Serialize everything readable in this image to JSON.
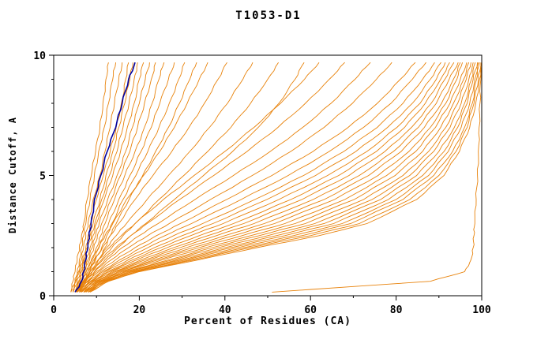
{
  "chart_data": {
    "type": "line",
    "title": "T1053-D1",
    "xlabel": "Percent of Residues (CA)",
    "ylabel": "Distance Cutoff, A",
    "xlim": [
      0,
      100
    ],
    "ylim": [
      0,
      10
    ],
    "x_ticks": [
      0,
      20,
      40,
      60,
      80,
      100
    ],
    "y_ticks": [
      0,
      5,
      10
    ],
    "grid": false,
    "legend": "none",
    "colors": {
      "model": "#e8820a",
      "highlight": "#0000a0",
      "frame": "#000000"
    },
    "cutoffs": [
      0.15,
      0.6,
      1,
      1.5,
      2,
      2.5,
      3,
      4,
      5,
      6,
      7,
      8,
      9,
      9.7
    ],
    "series": [
      {
        "c": "o",
        "p": [
          4,
          4.5,
          5,
          5.5,
          6,
          6.5,
          7,
          7.8,
          8.8,
          9.8,
          10.8,
          11.5,
          12.2,
          12.8
        ]
      },
      {
        "c": "o",
        "p": [
          4,
          5,
          5.5,
          6,
          6.5,
          7,
          7.5,
          8.5,
          9.5,
          10.5,
          11.8,
          12.8,
          13.8,
          14.5
        ]
      },
      {
        "c": "o",
        "p": [
          4.5,
          5,
          5.8,
          6.5,
          7,
          7.5,
          8,
          9.2,
          10.8,
          12,
          13.2,
          14.2,
          15.2,
          16
        ]
      },
      {
        "c": "o",
        "p": [
          4.5,
          5.2,
          6,
          6.8,
          7.5,
          8,
          8.6,
          10,
          11.6,
          13.2,
          14.6,
          15.8,
          16.8,
          17.5
        ]
      },
      {
        "c": "o",
        "p": [
          4.5,
          5.5,
          6.2,
          7,
          7.8,
          8.5,
          9.2,
          10.8,
          12.2,
          13.8,
          15.2,
          16.6,
          17.8,
          18.5
        ]
      },
      {
        "c": "o",
        "p": [
          5,
          5.8,
          6.5,
          7.2,
          8,
          8.8,
          9.6,
          11.2,
          13,
          14.8,
          16.2,
          17.6,
          18.8,
          19.6
        ]
      },
      {
        "c": "o",
        "p": [
          5,
          6,
          6.8,
          7.6,
          8.5,
          9.2,
          10,
          11.8,
          13.8,
          15.6,
          17.2,
          18.8,
          20,
          21
        ]
      },
      {
        "c": "o",
        "p": [
          5,
          6.2,
          7,
          8,
          9,
          9.8,
          10.6,
          12.6,
          14.8,
          16.8,
          18.4,
          20,
          21.4,
          22.4
        ]
      },
      {
        "c": "o",
        "p": [
          5.2,
          6.4,
          7.2,
          8.4,
          9.4,
          10.2,
          11.2,
          13.4,
          15.6,
          17.8,
          19.6,
          21.2,
          22.8,
          23.8
        ]
      },
      {
        "c": "o",
        "p": [
          5.5,
          6.6,
          7.6,
          8.8,
          10,
          11,
          12,
          14.2,
          16.6,
          19,
          21.2,
          23,
          24.6,
          25.8
        ]
      },
      {
        "c": "o",
        "p": [
          5.5,
          7,
          8,
          9.4,
          10.6,
          11.6,
          12.8,
          15.2,
          17.8,
          20.4,
          22.8,
          24.8,
          26.8,
          28.2
        ]
      },
      {
        "c": "o",
        "p": [
          6,
          7.2,
          8.4,
          9.8,
          11.2,
          12.4,
          13.6,
          16.2,
          19.2,
          22,
          24.6,
          27,
          29.2,
          30.6
        ]
      },
      {
        "c": "o",
        "p": [
          6,
          7.5,
          9,
          10.5,
          12,
          13.2,
          14.6,
          17.6,
          20.8,
          23.8,
          26.8,
          29.4,
          31.8,
          33.4
        ]
      },
      {
        "c": "o",
        "p": [
          5,
          6.5,
          7.5,
          9,
          10.5,
          12,
          13.8,
          17,
          21,
          24.8,
          28.2,
          31.2,
          34,
          36
        ]
      },
      {
        "c": "o",
        "p": [
          5,
          6.5,
          8,
          9.6,
          11.4,
          13.2,
          15.2,
          19,
          23.2,
          27.6,
          31.6,
          35.2,
          38.4,
          40.5
        ]
      },
      {
        "c": "o",
        "p": [
          5.2,
          7,
          8.5,
          10.4,
          12.4,
          14.6,
          17,
          21.8,
          26.8,
          31.8,
          36.4,
          40.6,
          44.2,
          46.5
        ]
      },
      {
        "c": "o",
        "p": [
          5.5,
          7.2,
          9,
          11.2,
          13.6,
          16.2,
          19,
          24.6,
          30.4,
          36,
          41.4,
          46,
          50,
          52.5
        ]
      },
      {
        "c": "o",
        "p": [
          5.5,
          7.5,
          9.5,
          12,
          15,
          18,
          21.5,
          28.2,
          35,
          41.8,
          47.8,
          52.6,
          56.4,
          58.5
        ]
      },
      {
        "c": "o",
        "p": [
          5,
          6.8,
          8.5,
          10.5,
          13,
          15.8,
          19,
          25.6,
          32.8,
          40,
          46.8,
          53,
          58.6,
          62
        ]
      },
      {
        "c": "o",
        "p": [
          5.2,
          7,
          9,
          11.5,
          14.5,
          18,
          21.8,
          29.4,
          37.4,
          45.2,
          52.4,
          58.8,
          64.4,
          68
        ]
      },
      {
        "c": "o",
        "p": [
          5.5,
          7.4,
          9.6,
          12.5,
          16,
          20,
          24.4,
          33,
          42,
          50.6,
          58.2,
          64.8,
          70.4,
          74
        ]
      },
      {
        "c": "o",
        "p": [
          5.5,
          7.8,
          10,
          13.5,
          17.5,
          22,
          27,
          36.6,
          46.4,
          55.4,
          63.2,
          69.8,
          75.4,
          79
        ]
      },
      {
        "c": "o",
        "p": [
          5.5,
          8,
          10.5,
          14.5,
          19,
          24,
          29.6,
          40.4,
          51,
          60.6,
          68.8,
          75.6,
          81,
          84.5
        ]
      },
      {
        "c": "o",
        "p": [
          6,
          8.2,
          11,
          15.5,
          20.5,
          26,
          32.2,
          43.8,
          54.8,
          64.4,
          72.4,
          78.8,
          83.8,
          87
        ]
      },
      {
        "c": "o",
        "p": [
          6,
          8.5,
          11.5,
          16.5,
          22,
          28,
          34.8,
          47,
          58.4,
          67.8,
          75.6,
          81.6,
          86.2,
          89
        ]
      },
      {
        "c": "o",
        "p": [
          6.2,
          8.8,
          12,
          17.5,
          23.5,
          30,
          37.2,
          49.8,
          61.2,
          70.6,
          78,
          83.8,
          88,
          90.5
        ]
      },
      {
        "c": "o",
        "p": [
          6.5,
          9,
          12.5,
          18.5,
          25,
          32,
          39.6,
          52.6,
          64,
          73.2,
          80.2,
          85.6,
          89.4,
          91.5
        ]
      },
      {
        "c": "o",
        "p": [
          6.5,
          9.2,
          13,
          19.5,
          26.5,
          34,
          42,
          55.4,
          66.6,
          75.4,
          82,
          86.8,
          90.4,
          92.5
        ]
      },
      {
        "c": "o",
        "p": [
          6.5,
          9.5,
          13.5,
          20.5,
          28,
          36,
          44.4,
          58,
          69,
          77.4,
          83.6,
          88.2,
          91.4,
          93.5
        ]
      },
      {
        "c": "o",
        "p": [
          7,
          9.8,
          14,
          21.5,
          29.5,
          38,
          46.8,
          60.6,
          71.4,
          79.4,
          85.2,
          89.4,
          92.4,
          94.5
        ]
      },
      {
        "c": "o",
        "p": [
          7,
          10,
          14.5,
          22.5,
          31,
          40,
          49.2,
          63.2,
          73.6,
          81.2,
          86.6,
          90.6,
          93.4,
          95
        ]
      },
      {
        "c": "o",
        "p": [
          7,
          10.2,
          15,
          23.5,
          32.5,
          42,
          51.6,
          65.6,
          75.8,
          83,
          88,
          91.6,
          94.2,
          95.5
        ]
      },
      {
        "c": "o",
        "p": [
          7.2,
          10.5,
          15.5,
          24.5,
          34,
          44,
          54,
          68,
          77.8,
          84.6,
          89.2,
          92.6,
          95,
          96.5
        ]
      },
      {
        "c": "o",
        "p": [
          7.5,
          10.8,
          16,
          25.5,
          35.5,
          46,
          56.4,
          70.2,
          79.8,
          86.2,
          90.4,
          93.4,
          95.8,
          97
        ]
      },
      {
        "c": "o",
        "p": [
          7.5,
          11,
          16.5,
          27,
          37,
          48,
          58.8,
          72.4,
          81.6,
          87.6,
          91.6,
          94.4,
          96.4,
          97.5
        ]
      },
      {
        "c": "o",
        "p": [
          7.5,
          11.2,
          17,
          28,
          38.5,
          50,
          61,
          74.4,
          83.2,
          88.8,
          92.6,
          95.2,
          97,
          98
        ]
      },
      {
        "c": "o",
        "p": [
          8,
          11.5,
          17.5,
          29,
          40,
          52,
          63.2,
          76.4,
          84.8,
          90,
          93.6,
          96,
          97.6,
          98.5
        ]
      },
      {
        "c": "o",
        "p": [
          8,
          11.8,
          18,
          30,
          41.5,
          54,
          65.4,
          78.2,
          86.2,
          91.2,
          94.4,
          96.6,
          98,
          99
        ]
      },
      {
        "c": "o",
        "p": [
          8,
          12,
          18.5,
          31,
          43,
          56,
          67.4,
          80,
          87.6,
          92.2,
          95.2,
          97.2,
          98.4,
          99.2
        ]
      },
      {
        "c": "o",
        "p": [
          8.2,
          12.2,
          19,
          32,
          44.5,
          58,
          69.4,
          81.6,
          88.8,
          93.2,
          96,
          97.8,
          98.8,
          99.5
        ]
      },
      {
        "c": "o",
        "p": [
          8.5,
          12.5,
          19.5,
          33,
          46,
          60,
          71.4,
          83.2,
          90,
          94,
          96.6,
          98.2,
          99.2,
          99.8
        ]
      },
      {
        "c": "o",
        "p": [
          8.5,
          12.8,
          20,
          34,
          47.5,
          62,
          73.2,
          84.8,
          91.2,
          94.8,
          97.2,
          98.6,
          99.5,
          100
        ]
      },
      {
        "c": "o",
        "p": [
          51,
          88,
          96,
          97.5,
          98,
          98.2,
          98.4,
          98.7,
          99,
          99.2,
          99.4,
          99.6,
          99.8,
          100
        ]
      },
      {
        "c": "b",
        "p": [
          5,
          6.5,
          7,
          7.5,
          8,
          8.3,
          8.7,
          9.5,
          11,
          12.5,
          14.5,
          16,
          17.5,
          19
        ]
      }
    ]
  }
}
